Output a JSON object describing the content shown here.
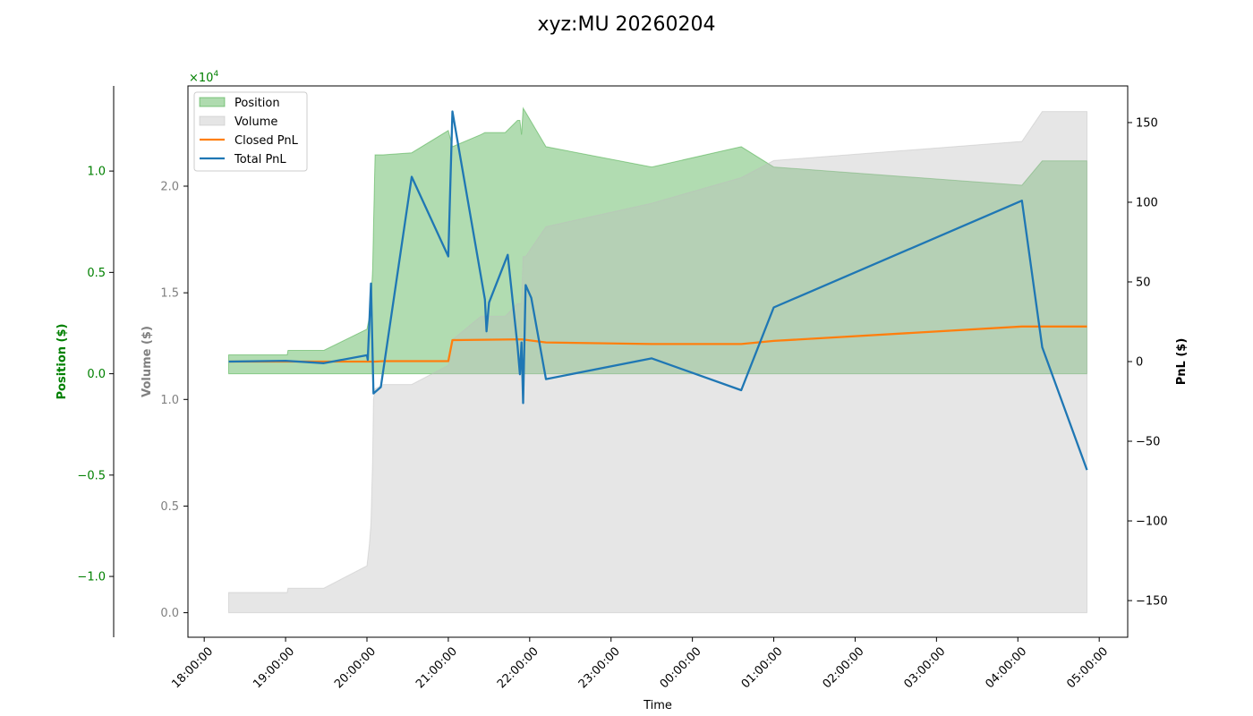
{
  "chart_data": {
    "type": "line",
    "title": "xyz:MU 20260204",
    "xlabel": "Time",
    "x_ticks": [
      "18:00:00",
      "19:00:00",
      "20:00:00",
      "21:00:00",
      "22:00:00",
      "23:00:00",
      "00:00:00",
      "01:00:00",
      "02:00:00",
      "03:00:00",
      "04:00:00",
      "05:00:00"
    ],
    "x_range_hours": [
      17.8,
      29.35
    ],
    "legend_position": "top-left",
    "grid": false,
    "colors": {
      "position": "#2ca02c",
      "volume": "#bdbdbd",
      "closed_pnl": "#ff7f0e",
      "total_pnl": "#1f77b4",
      "position_axis": "#008000",
      "volume_axis": "#808080"
    },
    "axes": {
      "position": {
        "label": "Position ($)",
        "ylim": [
          -13000,
          14200
        ],
        "ticks": [
          -10000,
          -5000,
          0,
          5000,
          10000
        ],
        "tick_labels": [
          "−1.0",
          "−0.5",
          "0.0",
          "0.5",
          "1.0"
        ],
        "multiplier": "×10",
        "multiplier_exp": "4"
      },
      "volume": {
        "label": "Volume ($)",
        "ylim": [
          -1150,
          24700
        ],
        "ticks": [
          0,
          5000,
          10000,
          15000,
          20000
        ],
        "tick_labels": [
          "0.0",
          "0.5",
          "1.0",
          "1.5",
          "2.0"
        ]
      },
      "pnl": {
        "label": "PnL ($)",
        "ylim": [
          -173,
          173
        ],
        "ticks": [
          -150,
          -100,
          -50,
          0,
          50,
          100,
          150
        ],
        "tick_labels": [
          "−150",
          "−100",
          "−50",
          "0",
          "50",
          "100",
          "150"
        ]
      }
    },
    "series": [
      {
        "name": "Position",
        "kind": "area",
        "axis": "position",
        "x": [
          18.3,
          19.02,
          19.03,
          19.47,
          20.0,
          20.05,
          20.06,
          20.07,
          20.08,
          20.1,
          20.2,
          20.55,
          21.0,
          21.05,
          21.4,
          21.45,
          21.6,
          21.7,
          21.85,
          21.88,
          21.9,
          21.92,
          21.95,
          22.2,
          23.5,
          24.6,
          25.0,
          28.05,
          28.3,
          28.85
        ],
        "y": [
          930,
          930,
          1150,
          1150,
          2200,
          3200,
          4400,
          5200,
          7200,
          10800,
          10800,
          10900,
          12000,
          11200,
          11800,
          11900,
          11900,
          11900,
          12500,
          12500,
          11800,
          13100,
          12900,
          11200,
          10200,
          11200,
          10200,
          9300,
          10500,
          10500
        ]
      },
      {
        "name": "Volume",
        "kind": "area",
        "axis": "volume",
        "x": [
          18.3,
          19.02,
          19.03,
          19.47,
          20.0,
          20.03,
          20.05,
          20.07,
          20.08,
          20.1,
          20.2,
          20.55,
          21.0,
          21.05,
          21.4,
          21.45,
          21.7,
          21.85,
          21.9,
          21.92,
          21.95,
          22.2,
          23.5,
          24.6,
          25.0,
          28.05,
          28.3,
          28.85
        ],
        "y": [
          950,
          950,
          1150,
          1150,
          2200,
          3200,
          4200,
          7300,
          10000,
          10500,
          10700,
          10700,
          11600,
          12800,
          13900,
          13900,
          13900,
          14500,
          14500,
          16700,
          16700,
          18100,
          19200,
          20400,
          21200,
          22100,
          23500,
          23500
        ]
      },
      {
        "name": "Closed PnL",
        "kind": "line",
        "axis": "pnl",
        "x": [
          18.3,
          19.0,
          19.47,
          20.0,
          20.05,
          20.1,
          20.2,
          21.0,
          21.05,
          21.9,
          22.2,
          23.5,
          24.6,
          25.0,
          28.05,
          28.3,
          28.85
        ],
        "y": [
          0,
          0,
          0,
          0,
          0,
          0,
          0.3,
          0.3,
          13.5,
          14,
          12,
          11,
          11,
          13,
          22,
          22,
          22
        ]
      },
      {
        "name": "Total PnL",
        "kind": "line",
        "axis": "pnl",
        "x": [
          18.3,
          19.0,
          19.47,
          20.0,
          20.01,
          20.05,
          20.08,
          20.17,
          20.55,
          21.0,
          21.05,
          21.45,
          21.47,
          21.5,
          21.73,
          21.85,
          21.88,
          21.9,
          21.92,
          21.95,
          22.02,
          22.2,
          23.5,
          24.6,
          25.0,
          28.05,
          28.3,
          28.85
        ],
        "y": [
          0,
          0.5,
          -1,
          4,
          1,
          49,
          -20,
          -16,
          116,
          66,
          157,
          39,
          19,
          37,
          67,
          10,
          -8,
          12,
          -26,
          48,
          40,
          -11,
          2,
          -18,
          34,
          101,
          9,
          -68
        ]
      }
    ]
  }
}
